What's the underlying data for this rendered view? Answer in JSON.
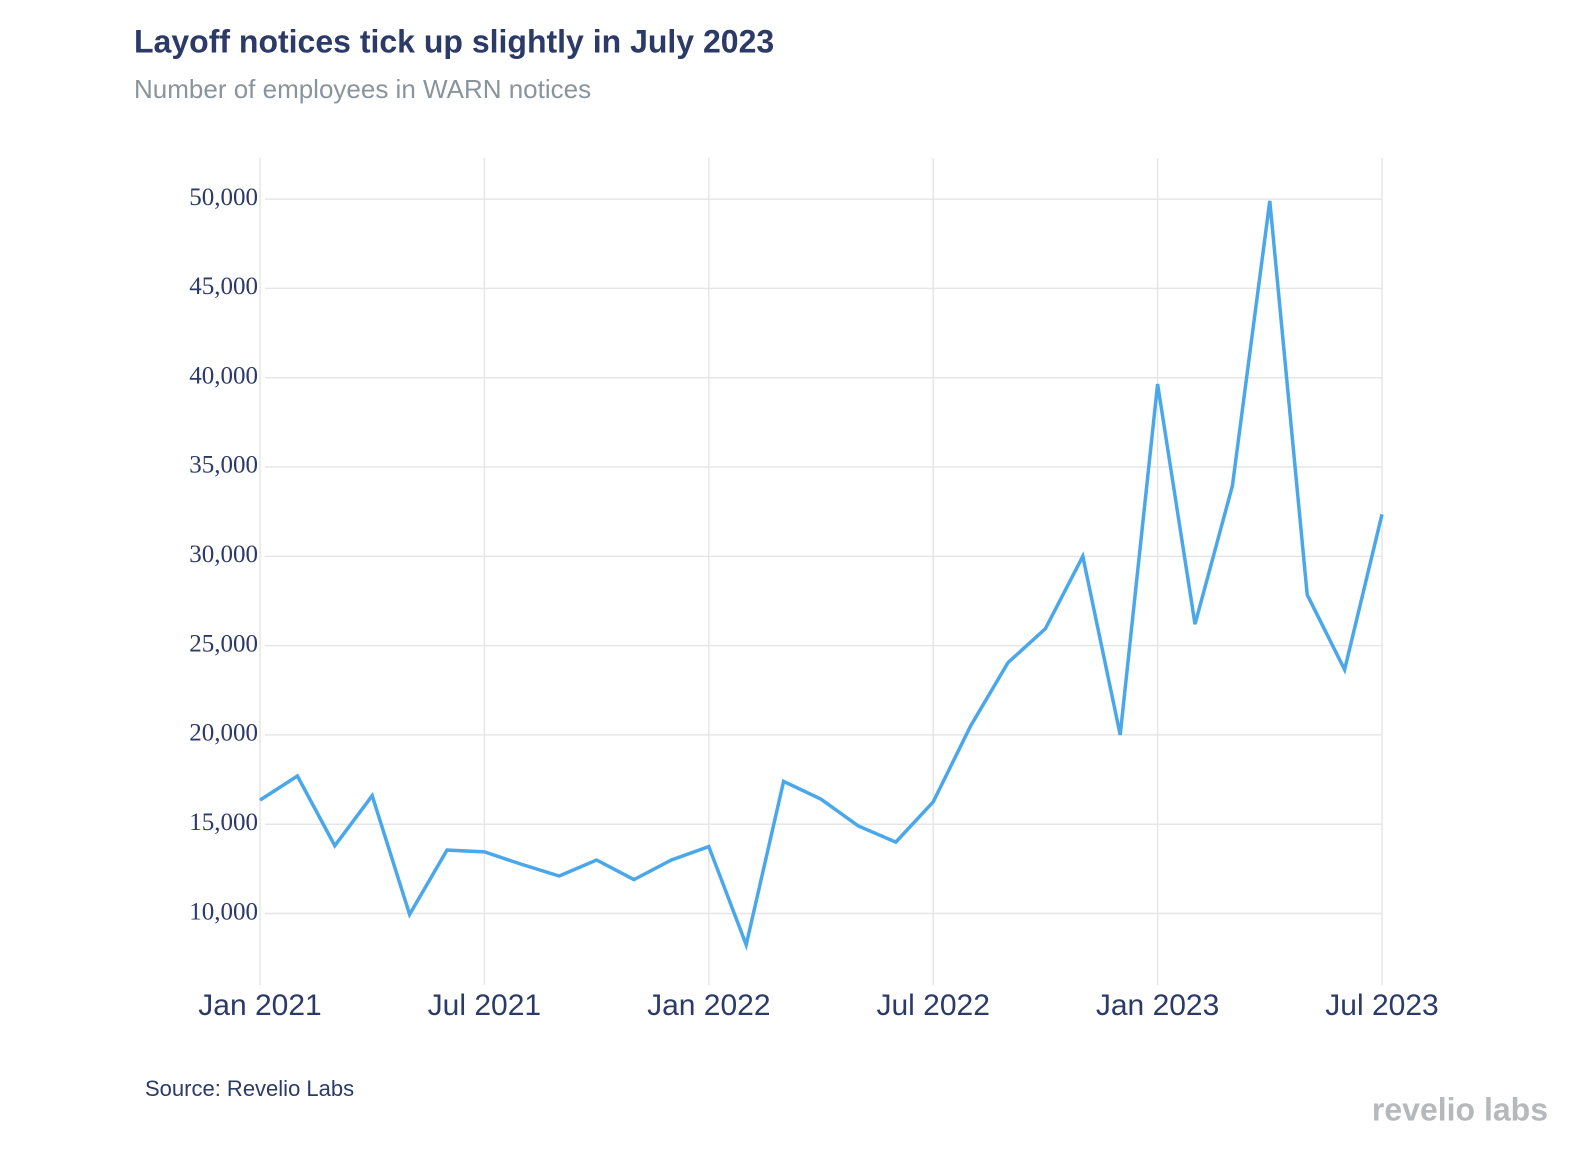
{
  "chart_data": {
    "type": "line",
    "title": "Layoff notices tick up slightly in July 2023",
    "subtitle": "Number of employees in WARN notices",
    "source": "Source: Revelio Labs",
    "logo": "revelio labs",
    "x": [
      "2021-01",
      "2021-02",
      "2021-03",
      "2021-04",
      "2021-05",
      "2021-06",
      "2021-07",
      "2021-08",
      "2021-09",
      "2021-10",
      "2021-11",
      "2021-12",
      "2022-01",
      "2022-02",
      "2022-03",
      "2022-04",
      "2022-05",
      "2022-06",
      "2022-07",
      "2022-08",
      "2022-09",
      "2022-10",
      "2022-11",
      "2022-12",
      "2023-01",
      "2023-02",
      "2023-03",
      "2023-04",
      "2023-05",
      "2023-06",
      "2023-07"
    ],
    "series": [
      {
        "name": "Employees in WARN notices",
        "color": "#4aa8ea",
        "values": [
          16350,
          17700,
          13800,
          16600,
          9950,
          13550,
          13450,
          12750,
          12100,
          13000,
          11900,
          13000,
          13750,
          8250,
          17400,
          16400,
          14900,
          14000,
          16250,
          20500,
          24050,
          25950,
          30000,
          20000,
          39650,
          26200,
          33950,
          49900,
          27850,
          23650,
          32350
        ]
      }
    ],
    "xlim": [
      "2021-01",
      "2023-07"
    ],
    "xticks": [
      {
        "value": "2021-01",
        "label": "Jan 2021"
      },
      {
        "value": "2021-07",
        "label": "Jul 2021"
      },
      {
        "value": "2022-01",
        "label": "Jan 2022"
      },
      {
        "value": "2022-07",
        "label": "Jul 2022"
      },
      {
        "value": "2023-01",
        "label": "Jan 2023"
      },
      {
        "value": "2023-07",
        "label": "Jul 2023"
      }
    ],
    "ylim": [
      6000,
      52300
    ],
    "yticks": [
      {
        "value": 10000,
        "label": "10,000"
      },
      {
        "value": 15000,
        "label": "15,000"
      },
      {
        "value": 20000,
        "label": "20,000"
      },
      {
        "value": 25000,
        "label": "25,000"
      },
      {
        "value": 30000,
        "label": "30,000"
      },
      {
        "value": 35000,
        "label": "35,000"
      },
      {
        "value": 40000,
        "label": "40,000"
      },
      {
        "value": 45000,
        "label": "45,000"
      },
      {
        "value": 50000,
        "label": "50,000"
      }
    ],
    "grid": true
  }
}
